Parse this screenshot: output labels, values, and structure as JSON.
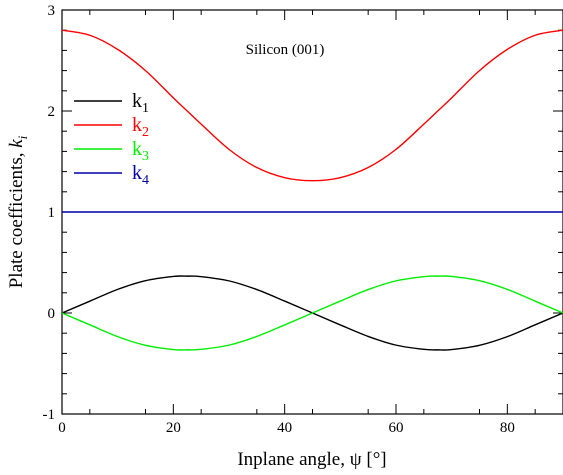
{
  "chart_data": {
    "type": "line",
    "annotation": "Silicon (001)",
    "xlabel": "Inplane angle, ψ  [°]",
    "ylabel": {
      "main": "Plate coefficients, ",
      "italic": "k",
      "sub": "i"
    },
    "xlim": [
      0,
      90
    ],
    "ylim": [
      -1,
      3
    ],
    "x_ticks": [
      0,
      20,
      40,
      60,
      80
    ],
    "x_tick_labels": [
      "0",
      "20",
      "40",
      "60",
      "80"
    ],
    "y_ticks": [
      -1,
      0,
      1,
      2,
      3
    ],
    "y_tick_labels": [
      "-1",
      "0",
      "1",
      "2",
      "3"
    ],
    "grid": false,
    "legend_position": "upper-left",
    "x": [
      0,
      5,
      10,
      15,
      20,
      22.5,
      25,
      30,
      35,
      40,
      45,
      50,
      55,
      60,
      65,
      67.5,
      70,
      75,
      80,
      85,
      90
    ],
    "series": [
      {
        "name": "k",
        "sub": "1",
        "color": "#000000",
        "values": [
          0,
          0.117,
          0.234,
          0.32,
          0.362,
          0.365,
          0.36,
          0.318,
          0.232,
          0.118,
          0,
          -0.118,
          -0.232,
          -0.318,
          -0.36,
          -0.365,
          -0.362,
          -0.32,
          -0.234,
          -0.117,
          0
        ]
      },
      {
        "name": "k",
        "sub": "2",
        "color": "#ff0000",
        "values": [
          2.8,
          2.75,
          2.61,
          2.4,
          2.13,
          2.0,
          1.87,
          1.62,
          1.44,
          1.34,
          1.31,
          1.34,
          1.44,
          1.62,
          1.87,
          2.0,
          2.13,
          2.4,
          2.61,
          2.75,
          2.8
        ]
      },
      {
        "name": "k",
        "sub": "3",
        "color": "#00ee00",
        "values": [
          0,
          -0.117,
          -0.234,
          -0.32,
          -0.362,
          -0.365,
          -0.36,
          -0.318,
          -0.232,
          -0.118,
          0,
          0.118,
          0.232,
          0.318,
          0.36,
          0.365,
          0.362,
          0.32,
          0.234,
          0.117,
          0
        ]
      },
      {
        "name": "k",
        "sub": "4",
        "color": "#0000aa",
        "values": [
          1,
          1,
          1,
          1,
          1,
          1,
          1,
          1,
          1,
          1,
          1,
          1,
          1,
          1,
          1,
          1,
          1,
          1,
          1,
          1,
          1
        ]
      }
    ]
  }
}
